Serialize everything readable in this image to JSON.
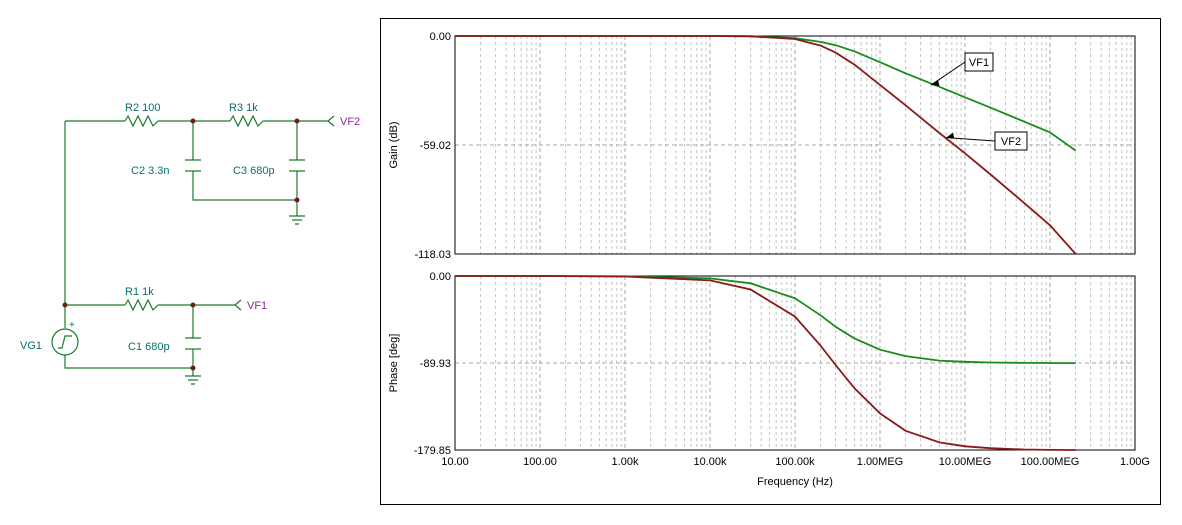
{
  "schematic": {
    "components": {
      "r2": "R2 100",
      "r3": "R3 1k",
      "c2": "C2 3.3n",
      "c3": "C3 680p",
      "r1": "R1 1k",
      "c1": "C1 680p",
      "vg1": "VG1",
      "plus": "+"
    },
    "nets": {
      "vf2": "VF2",
      "vf1": "VF1"
    }
  },
  "chart_data": [
    {
      "type": "line",
      "title": "",
      "xlabel": "Frequency (Hz)",
      "ylabel": "Gain (dB)",
      "xscale": "log",
      "xlim": [
        10,
        1000000000
      ],
      "ylim": [
        -118.03,
        0
      ],
      "grid": true,
      "x_tick_labels": [
        "10.00",
        "100.00",
        "1.00k",
        "10.00k",
        "100.00k",
        "1.00MEG",
        "10.00MEG",
        "100.00MEG",
        "1.00G"
      ],
      "y_tick_labels": [
        "0.00",
        "-59.02",
        "-118.03"
      ],
      "annotations": [
        "VF1",
        "VF2"
      ],
      "series": [
        {
          "name": "VF1",
          "color": "#1a8c1a",
          "x": [
            10,
            100,
            1000,
            10000,
            30000,
            100000,
            200000,
            300000,
            500000,
            1000000,
            2000000,
            5000000,
            10000000,
            20000000,
            50000000,
            100000000,
            200000000
          ],
          "y": [
            0,
            0,
            0,
            0,
            -0.1,
            -1.2,
            -3.2,
            -5,
            -8.3,
            -14.2,
            -20.2,
            -27.5,
            -33.2,
            -38.8,
            -46.4,
            -52.2,
            -62
          ]
        },
        {
          "name": "VF2",
          "color": "#8a1a1a",
          "x": [
            10,
            100,
            1000,
            10000,
            30000,
            100000,
            200000,
            300000,
            500000,
            1000000,
            2000000,
            5000000,
            10000000,
            20000000,
            50000000,
            100000000,
            200000000
          ],
          "y": [
            0,
            0,
            0,
            0,
            -0.15,
            -1.6,
            -5.2,
            -9,
            -15.5,
            -26.5,
            -37.5,
            -52.5,
            -63.5,
            -75,
            -90.5,
            -102.5,
            -118
          ]
        }
      ]
    },
    {
      "type": "line",
      "title": "",
      "xlabel": "Frequency (Hz)",
      "ylabel": "Phase [deg]",
      "xscale": "log",
      "xlim": [
        10,
        1000000000
      ],
      "ylim": [
        -179.85,
        0
      ],
      "grid": true,
      "x_tick_labels": [
        "10.00",
        "100.00",
        "1.00k",
        "10.00k",
        "100.00k",
        "1.00MEG",
        "10.00MEG",
        "100.00MEG",
        "1.00G"
      ],
      "y_tick_labels": [
        "0.00",
        "-89.93",
        "-179.85"
      ],
      "series": [
        {
          "name": "VF1",
          "color": "#1a8c1a",
          "x": [
            10,
            100,
            1000,
            10000,
            30000,
            100000,
            200000,
            300000,
            500000,
            1000000,
            2000000,
            5000000,
            10000000,
            20000000,
            50000000,
            100000000,
            200000000
          ],
          "y": [
            0,
            0,
            -0.3,
            -2.5,
            -7.5,
            -23.1,
            -40.6,
            -52.5,
            -64.5,
            -76.2,
            -82.8,
            -87.4,
            -88.7,
            -89.4,
            -89.8,
            -89.9,
            -90
          ]
        },
        {
          "name": "VF2",
          "color": "#8a1a1a",
          "x": [
            10,
            100,
            1000,
            10000,
            30000,
            100000,
            200000,
            300000,
            500000,
            1000000,
            2000000,
            5000000,
            10000000,
            20000000,
            50000000,
            100000000,
            200000000
          ],
          "y": [
            0,
            0,
            -0.5,
            -4.5,
            -14,
            -42,
            -72,
            -92,
            -116,
            -142,
            -160,
            -172,
            -176,
            -178,
            -179.3,
            -179.7,
            -179.8
          ]
        }
      ]
    }
  ]
}
